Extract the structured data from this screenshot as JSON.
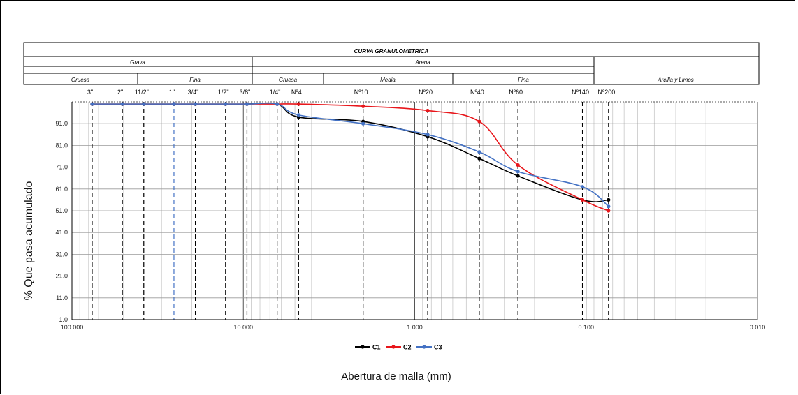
{
  "header": {
    "title": "CURVA GRANULOMETRICA",
    "grava": "Grava",
    "arena": "Arena",
    "gruesa_grava": "Gruesa",
    "fina_grava": "Fina",
    "gruesa_arena": "Gruesa",
    "media_arena": "Media",
    "fina_arena": "Fina",
    "arcilla": "Arcilla y Limos"
  },
  "chart_data": {
    "type": "line",
    "xscale": "log",
    "xreversed": true,
    "xlim": [
      100,
      0.01
    ],
    "ylim": [
      1,
      101
    ],
    "xlabel": "Abertura de malla (mm)",
    "ylabel": "% Que pasa acumulado",
    "x_tick_labels": [
      "100.000",
      "10.000",
      "1.000",
      "0.100",
      "0.010"
    ],
    "x_tick_values": [
      100,
      10,
      1,
      0.1,
      0.01
    ],
    "y_tick_labels": [
      "1.0",
      "11.0",
      "21.0",
      "31.0",
      "41.0",
      "51.0",
      "61.0",
      "71.0",
      "81.0",
      "91.0"
    ],
    "y_tick_values": [
      1,
      11,
      21,
      31,
      41,
      51,
      61,
      71,
      81,
      91
    ],
    "sieves": [
      {
        "label": "3\"",
        "size": 76.2
      },
      {
        "label": "2\"",
        "size": 50.8
      },
      {
        "label": "11/2\"",
        "size": 38.1
      },
      {
        "label": "1\"",
        "size": 25.4
      },
      {
        "label": "3/4\"",
        "size": 19.05
      },
      {
        "label": "1/2\"",
        "size": 12.7
      },
      {
        "label": "3/8\"",
        "size": 9.525
      },
      {
        "label": "1/4\"",
        "size": 6.35
      },
      {
        "label": "Nº4",
        "size": 4.76
      },
      {
        "label": "Nº10",
        "size": 2.0
      },
      {
        "label": "Nº20",
        "size": 0.84
      },
      {
        "label": "Nº40",
        "size": 0.42
      },
      {
        "label": "Nº60",
        "size": 0.25
      },
      {
        "label": "Nº140",
        "size": 0.105
      },
      {
        "label": "Nº200",
        "size": 0.074
      }
    ],
    "series": [
      {
        "name": "C1",
        "color": "#000000",
        "x": [
          76.2,
          50.8,
          38.1,
          25.4,
          19.05,
          12.7,
          9.525,
          6.35,
          4.76,
          2.0,
          0.84,
          0.42,
          0.25,
          0.105,
          0.074
        ],
        "y": [
          100,
          100,
          100,
          100,
          100,
          100,
          100,
          100,
          94,
          92,
          85,
          75,
          67,
          56,
          56
        ]
      },
      {
        "name": "C2",
        "color": "#e8161b",
        "x": [
          76.2,
          50.8,
          38.1,
          25.4,
          19.05,
          12.7,
          9.525,
          6.35,
          4.76,
          2.0,
          0.84,
          0.42,
          0.25,
          0.105,
          0.074
        ],
        "y": [
          100,
          100,
          100,
          100,
          100,
          100,
          100,
          100,
          100,
          99,
          97,
          92,
          72,
          56,
          51
        ]
      },
      {
        "name": "C3",
        "color": "#4472c4",
        "x": [
          76.2,
          50.8,
          38.1,
          25.4,
          19.05,
          12.7,
          9.525,
          6.35,
          4.76,
          2.0,
          0.84,
          0.42,
          0.25,
          0.105,
          0.074
        ],
        "y": [
          100,
          100,
          100,
          100,
          100,
          100,
          100,
          100,
          95,
          91,
          86,
          78,
          69,
          62,
          53
        ]
      }
    ],
    "legend_position": "bottom-center",
    "grid": true
  }
}
